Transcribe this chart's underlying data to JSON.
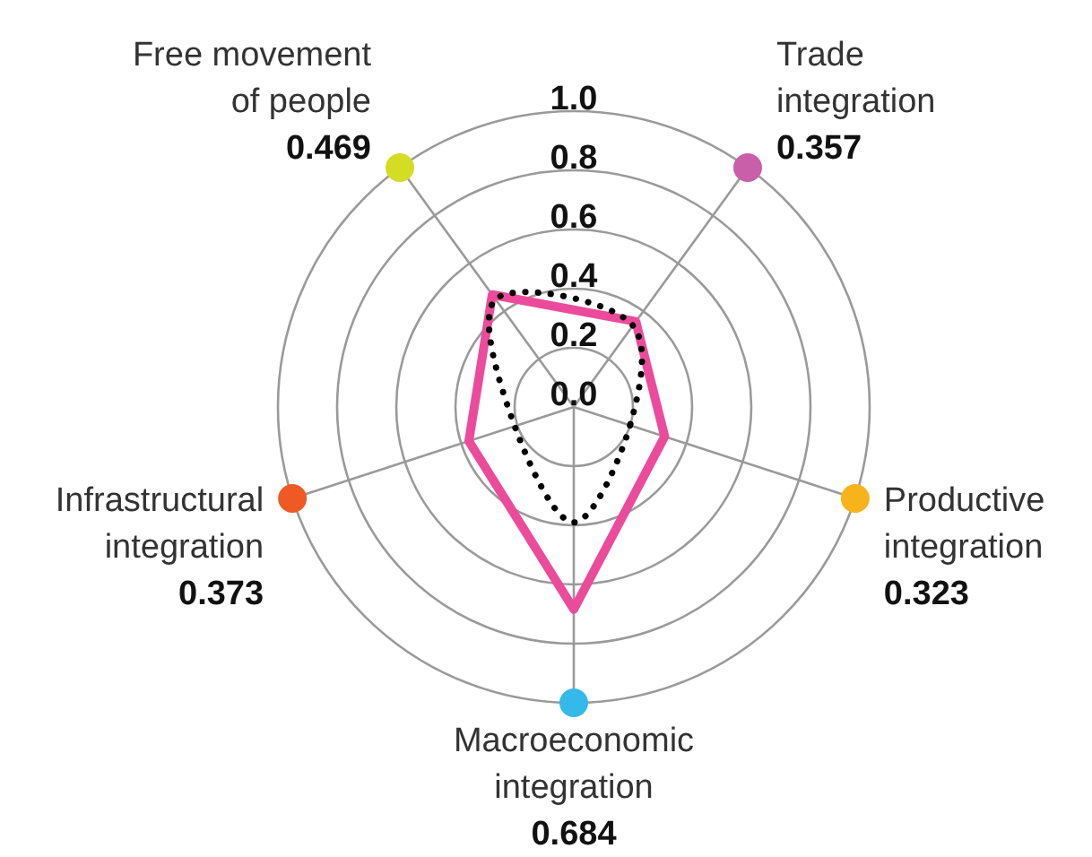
{
  "chart_data": {
    "type": "radar",
    "categories": [
      "Trade integration",
      "Productive integration",
      "Macroeconomic integration",
      "Infrastructural integration",
      "Free movement of people"
    ],
    "colors": [
      "#c85fa8",
      "#f7b31b",
      "#35b9e9",
      "#ef5a24",
      "#d4dc24"
    ],
    "series": [
      {
        "color": "#ec4b9b",
        "values": [
          0.357,
          0.323,
          0.684,
          0.373,
          0.469
        ],
        "line_style": "solid"
      },
      {
        "color": "#000000",
        "values": [
          0.34,
          0.2,
          0.39,
          0.21,
          0.45
        ],
        "line_style": "dotted"
      }
    ],
    "ylim": [
      0,
      1
    ],
    "yticks": [
      {
        "value": 0,
        "label": "0.0"
      },
      {
        "value": 0.2,
        "label": "0.2"
      },
      {
        "value": 0.4,
        "label": "0.4"
      },
      {
        "value": 0.6,
        "label": "0.6"
      },
      {
        "value": 0.8,
        "label": "0.8"
      },
      {
        "value": 1,
        "label": "1.0"
      }
    ],
    "annotations": [
      "0.357",
      "0.323",
      "0.684",
      "0.373",
      "0.469"
    ],
    "grid": true,
    "marker": "none"
  }
}
